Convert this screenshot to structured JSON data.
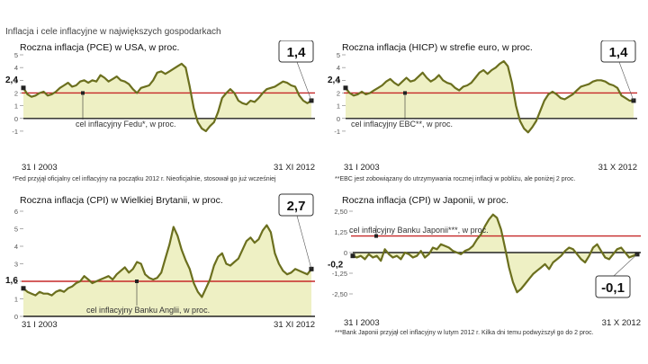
{
  "main_title": "Inflacja i cele inflacyjne w największych gospodarkach",
  "chart_data": [
    {
      "type": "line",
      "title": "Roczna inflacja (PCE) w USA, w proc.",
      "ylim": [
        -1.5,
        5
      ],
      "yticks": [
        "-1",
        "0",
        "1",
        "2",
        "3",
        "4",
        "5"
      ],
      "ytick_values": [
        -1,
        0,
        1,
        2,
        3,
        4,
        5
      ],
      "target": 2,
      "target_label": "cel inflacyjny Fedu*, w proc.",
      "start_label": "31 I 2003",
      "end_label": "31 XI 2012",
      "start_value": 2.4,
      "start_value_label": "2,4",
      "end_value": 1.4,
      "end_value_label": "1,4",
      "footnote": "*Fed przyjął oficjalny cel inflacyjny na początku 2012 r. Nieoficjalnie, stosował go już wcześniej",
      "series": [
        {
          "values": [
            2.4,
            1.9,
            1.7,
            1.8,
            2.0,
            2.1,
            1.8,
            1.9,
            2.1,
            2.4,
            2.6,
            2.8,
            2.5,
            2.6,
            2.9,
            3.0,
            2.8,
            3.0,
            2.9,
            3.4,
            3.2,
            2.9,
            3.1,
            3.3,
            3.0,
            2.9,
            2.7,
            2.3,
            2.0,
            2.4,
            2.5,
            2.6,
            3.0,
            3.6,
            3.7,
            3.5,
            3.7,
            3.9,
            4.1,
            4.3,
            4.0,
            2.5,
            0.8,
            -0.3,
            -0.8,
            -1.0,
            -0.6,
            -0.3,
            0.5,
            1.6,
            2.0,
            2.3,
            2.0,
            1.4,
            1.2,
            1.1,
            1.4,
            1.3,
            1.6,
            2.0,
            2.3,
            2.4,
            2.5,
            2.7,
            2.9,
            2.8,
            2.6,
            2.5,
            1.8,
            1.4,
            1.2,
            1.4
          ]
        }
      ]
    },
    {
      "type": "line",
      "title": "Roczna inflacja (HICP) w strefie euro, w proc.",
      "ylim": [
        -1.5,
        5
      ],
      "yticks": [
        "-1",
        "0",
        "1",
        "2",
        "3",
        "4",
        "5"
      ],
      "ytick_values": [
        -1,
        0,
        1,
        2,
        3,
        4,
        5
      ],
      "target": 2,
      "target_label": "cel inflacyjny EBC**, w proc.",
      "start_label": "31 I 2003",
      "end_label": "31 X 2012",
      "start_value": 2.4,
      "start_value_label": "2,4",
      "end_value": 1.4,
      "end_value_label": "1,4",
      "footnote": "**EBC jest zobowiązany do utrzymywania rocznej inflacji w pobliżu, ale poniżej 2 proc.",
      "series": [
        {
          "values": [
            2.4,
            2.0,
            1.8,
            1.9,
            2.1,
            1.9,
            2.0,
            2.2,
            2.4,
            2.6,
            2.9,
            3.1,
            2.8,
            2.6,
            2.9,
            3.2,
            2.9,
            3.0,
            3.3,
            3.6,
            3.2,
            2.9,
            3.1,
            3.4,
            3.0,
            2.8,
            2.7,
            2.4,
            2.2,
            2.5,
            2.6,
            2.8,
            3.2,
            3.6,
            3.8,
            3.5,
            3.8,
            4.0,
            4.3,
            4.5,
            4.1,
            2.8,
            1.0,
            -0.2,
            -0.8,
            -1.1,
            -0.7,
            -0.2,
            0.6,
            1.4,
            1.9,
            2.1,
            1.9,
            1.6,
            1.5,
            1.7,
            1.9,
            2.2,
            2.5,
            2.6,
            2.7,
            2.9,
            3.0,
            3.0,
            2.9,
            2.7,
            2.6,
            2.4,
            1.8,
            1.6,
            1.4,
            1.4
          ]
        }
      ]
    },
    {
      "type": "line",
      "title": "Roczna inflacja (CPI) w Wielkiej Brytanii, w proc.",
      "ylim": [
        0,
        6
      ],
      "yticks": [
        "0",
        "1",
        "2",
        "3",
        "4",
        "5",
        "6"
      ],
      "ytick_values": [
        0,
        1,
        2,
        3,
        4,
        5,
        6
      ],
      "target": 2,
      "target_label": "cel inflacyjny Banku Anglii, w proc.",
      "start_label": "31 I 2003",
      "end_label": "31 XI 2012",
      "start_value": 1.6,
      "start_value_label": "1,6",
      "end_value": 2.7,
      "end_value_label": "2,7",
      "series": [
        {
          "values": [
            1.6,
            1.4,
            1.3,
            1.2,
            1.4,
            1.3,
            1.3,
            1.2,
            1.4,
            1.5,
            1.4,
            1.6,
            1.7,
            1.9,
            2.0,
            2.3,
            2.1,
            1.9,
            2.0,
            2.1,
            2.2,
            2.3,
            2.1,
            2.4,
            2.6,
            2.8,
            2.5,
            2.7,
            3.1,
            3.0,
            2.4,
            2.2,
            2.1,
            2.2,
            2.5,
            3.3,
            4.1,
            5.1,
            4.6,
            3.8,
            3.2,
            2.7,
            1.9,
            1.4,
            1.1,
            1.6,
            2.1,
            2.9,
            3.4,
            3.6,
            3.0,
            2.9,
            3.1,
            3.3,
            3.8,
            4.3,
            4.5,
            4.2,
            4.4,
            4.9,
            5.2,
            4.8,
            3.6,
            3.0,
            2.6,
            2.4,
            2.5,
            2.7,
            2.6,
            2.5,
            2.4,
            2.7
          ]
        }
      ]
    },
    {
      "type": "line",
      "title": "Roczna inflacja (CPI) w Japonii, w proc.",
      "ylim": [
        -2.5,
        2.5
      ],
      "yticks": [
        "-2,50",
        "-1,25",
        "0",
        "1,25",
        "2,50"
      ],
      "ytick_values": [
        -2.5,
        -1.25,
        0,
        1.25,
        2.5
      ],
      "target": 1,
      "target_label": "cel inflacyjny Banku Japonii***, w proc.",
      "start_label": "31 I 2003",
      "end_label": "31 X 2012",
      "start_value": -0.2,
      "start_value_label": "-0,2",
      "end_value": -0.1,
      "end_value_label": "-0,1",
      "footnote": "***Bank Japonii przyjął cel inflacyjny w lutym 2012 r. Kilka dni temu podwyższył go do 2 proc.",
      "series": [
        {
          "values": [
            -0.2,
            -0.3,
            -0.2,
            -0.4,
            -0.1,
            -0.3,
            -0.2,
            -0.5,
            0.2,
            -0.1,
            -0.3,
            -0.2,
            -0.4,
            0.0,
            -0.1,
            -0.3,
            -0.2,
            0.1,
            -0.3,
            -0.1,
            0.3,
            0.2,
            0.5,
            0.4,
            0.3,
            0.1,
            0.0,
            -0.1,
            0.1,
            0.2,
            0.4,
            0.8,
            1.1,
            1.6,
            2.0,
            2.3,
            2.1,
            1.4,
            0.3,
            -0.9,
            -1.8,
            -2.4,
            -2.2,
            -1.9,
            -1.6,
            -1.3,
            -1.1,
            -0.9,
            -0.7,
            -1.0,
            -0.6,
            -0.4,
            -0.2,
            0.1,
            0.3,
            0.2,
            -0.1,
            -0.4,
            -0.6,
            -0.2,
            0.3,
            0.5,
            0.1,
            -0.3,
            -0.4,
            -0.1,
            0.2,
            0.3,
            0.0,
            -0.3,
            -0.2,
            -0.1
          ]
        }
      ]
    }
  ]
}
